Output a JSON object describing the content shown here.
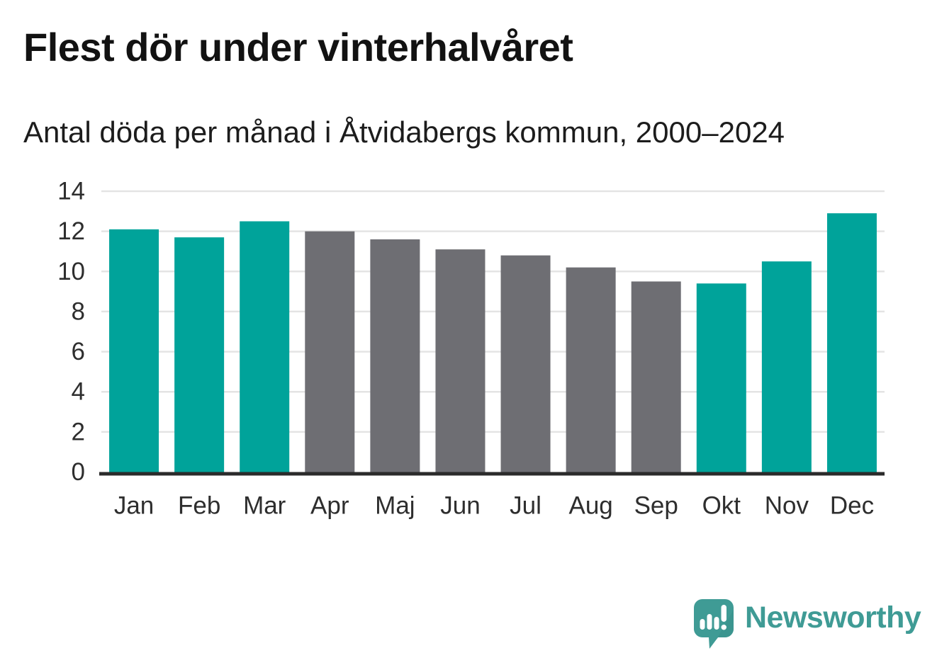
{
  "title": "Flest dör under vinterhalvåret",
  "subtitle": "Antal döda per månad i Åtvidabergs kommun, 2000–2024",
  "branding": {
    "logo_text": "Newsworthy",
    "logo_icon": "speech-bubble-with-bar-chart-and-exclamation",
    "logo_color": "#3f9b95"
  },
  "colors": {
    "highlight": "#00a39a",
    "muted": "#6e6e73",
    "gridline": "#e4e4e4",
    "axis": "#2b2b2b",
    "tick_text": "#2e2e2e"
  },
  "chart_data": {
    "type": "bar",
    "title": "Flest dör under vinterhalvåret",
    "subtitle": "Antal döda per månad i Åtvidabergs kommun, 2000–2024",
    "categories": [
      "Jan",
      "Feb",
      "Mar",
      "Apr",
      "Maj",
      "Jun",
      "Jul",
      "Aug",
      "Sep",
      "Okt",
      "Nov",
      "Dec"
    ],
    "values": [
      12.1,
      11.7,
      12.5,
      12.0,
      11.6,
      11.1,
      10.8,
      10.2,
      9.5,
      9.4,
      10.5,
      12.9
    ],
    "bar_color_roles": [
      "highlight",
      "highlight",
      "highlight",
      "muted",
      "muted",
      "muted",
      "muted",
      "muted",
      "muted",
      "highlight",
      "highlight",
      "highlight"
    ],
    "xlabel": "",
    "ylabel": "",
    "ylim": [
      0,
      14
    ],
    "ytick_step": 2,
    "grid": true,
    "legend_position": "none"
  }
}
